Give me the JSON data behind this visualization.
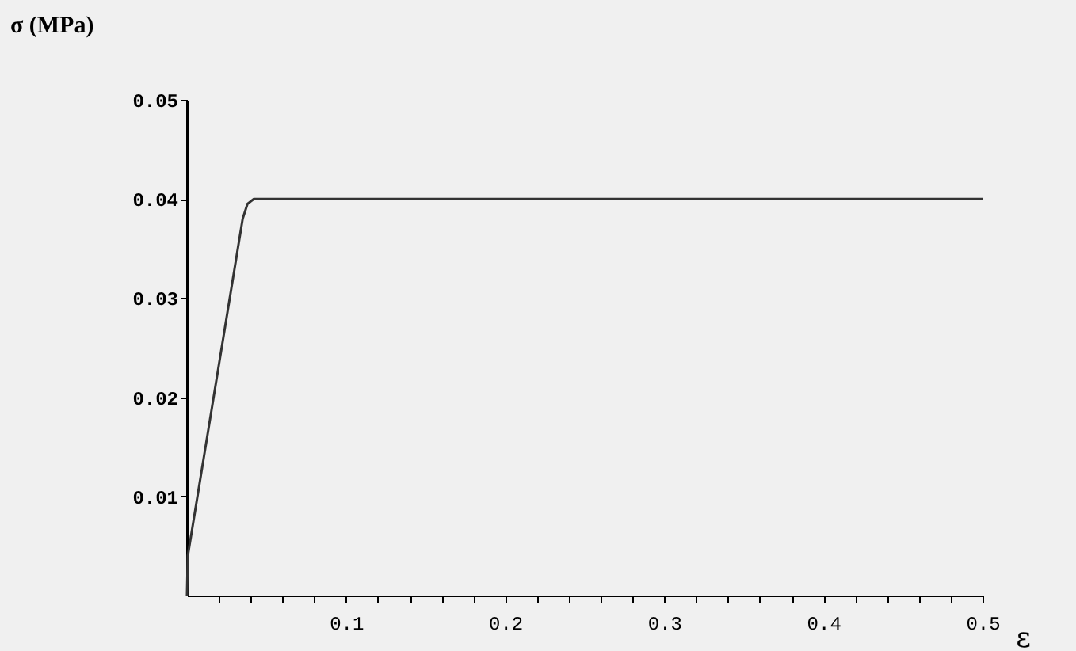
{
  "chart_data": {
    "type": "line",
    "xlabel": "ε",
    "ylabel": "σ (MPa)",
    "x": [
      0,
      0.0005,
      0.035,
      0.038,
      0.042,
      0.5
    ],
    "values": [
      0,
      0.004,
      0.038,
      0.0395,
      0.04,
      0.04
    ],
    "color": "#333333",
    "xlim": [
      0,
      0.5
    ],
    "ylim": [
      0,
      0.05
    ],
    "xticks": [
      {
        "value": 0.02,
        "label": null
      },
      {
        "value": 0.04,
        "label": null
      },
      {
        "value": 0.06,
        "label": null
      },
      {
        "value": 0.08,
        "label": null
      },
      0.1,
      {
        "value": 0.12,
        "label": null
      },
      {
        "value": 0.14,
        "label": null
      },
      {
        "value": 0.16,
        "label": null
      },
      {
        "value": 0.18,
        "label": null
      },
      0.2,
      {
        "value": 0.22,
        "label": null
      },
      {
        "value": 0.24,
        "label": null
      },
      {
        "value": 0.26,
        "label": null
      },
      {
        "value": 0.28,
        "label": null
      },
      0.3,
      {
        "value": 0.32,
        "label": null
      },
      {
        "value": 0.34,
        "label": null
      },
      {
        "value": 0.36,
        "label": null
      },
      {
        "value": 0.38,
        "label": null
      },
      0.4,
      {
        "value": 0.42,
        "label": null
      },
      {
        "value": 0.44,
        "label": null
      },
      {
        "value": 0.46,
        "label": null
      },
      {
        "value": 0.48,
        "label": null
      },
      0.5
    ],
    "yticks": [
      0.01,
      0.02,
      0.03,
      0.04,
      0.05
    ],
    "grid": false,
    "marker": "none",
    "line_style": "solid"
  }
}
